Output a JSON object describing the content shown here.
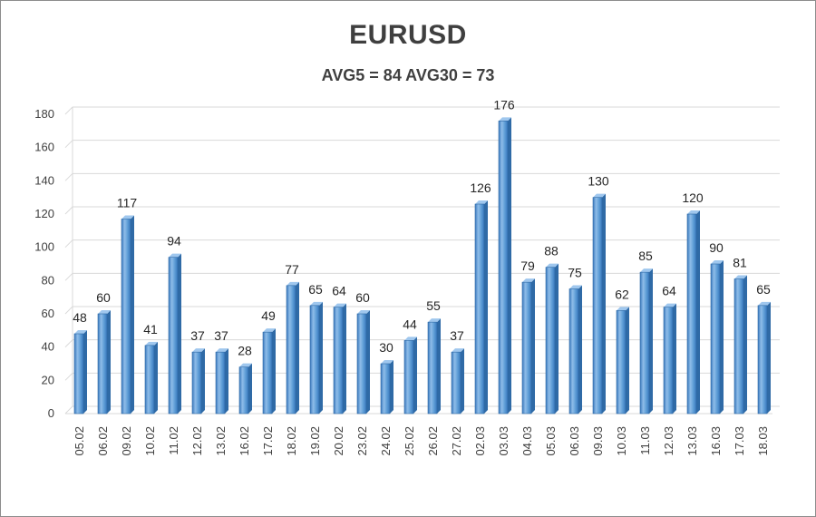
{
  "chart_data": {
    "type": "bar",
    "title": "EURUSD",
    "subtitle": "AVG5 = 84 AVG30 = 73",
    "xlabel": "",
    "ylabel": "",
    "ylim": [
      0,
      180
    ],
    "yticks": [
      0,
      20,
      40,
      60,
      80,
      100,
      120,
      140,
      160,
      180
    ],
    "grid": true,
    "categories": [
      "05.02",
      "06.02",
      "09.02",
      "10.02",
      "11.02",
      "12.02",
      "13.02",
      "16.02",
      "17.02",
      "18.02",
      "19.02",
      "20.02",
      "23.02",
      "24.02",
      "25.02",
      "26.02",
      "27.02",
      "02.03",
      "03.03",
      "04.03",
      "05.03",
      "06.03",
      "09.03",
      "10.03",
      "11.03",
      "12.03",
      "13.03",
      "16.03",
      "17.03",
      "18.03"
    ],
    "values": [
      48,
      60,
      117,
      41,
      94,
      37,
      37,
      28,
      49,
      77,
      65,
      64,
      60,
      30,
      44,
      55,
      37,
      126,
      176,
      79,
      88,
      75,
      130,
      62,
      85,
      64,
      120,
      90,
      81,
      65
    ],
    "colors": {
      "bar_light": "#9fc7ee",
      "bar_mid": "#5b9bd5",
      "bar_dark": "#2f6aa6",
      "grid": "#d9d9d9",
      "floor": "#d9d9d9"
    }
  }
}
